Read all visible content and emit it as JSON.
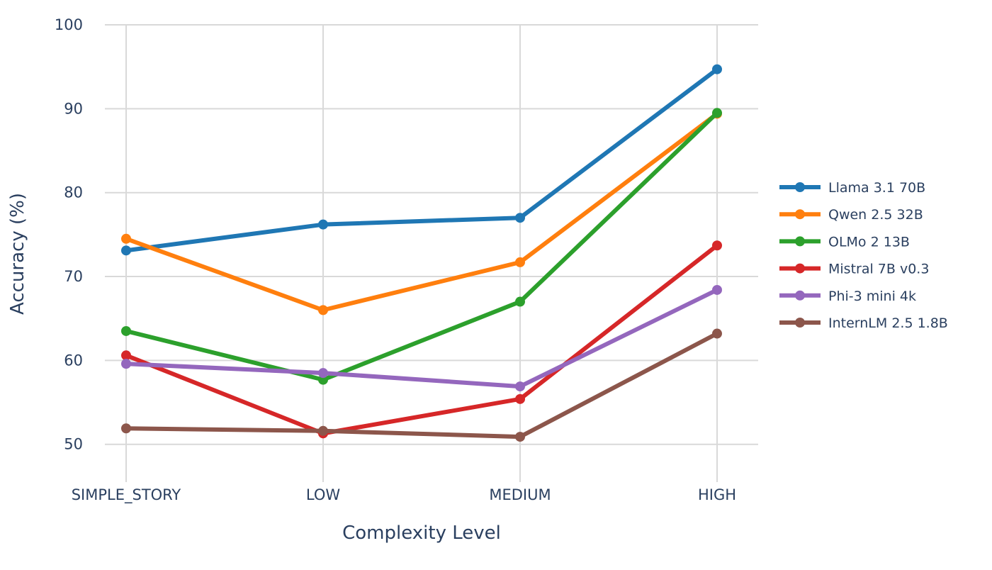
{
  "chart_data": {
    "type": "line",
    "title": "",
    "xlabel": "Complexity Level",
    "ylabel": "Accuracy (%)",
    "categories": [
      "SIMPLE_STORY",
      "LOW",
      "MEDIUM",
      "HIGH"
    ],
    "ylim": [
      45.5,
      100
    ],
    "yticks": [
      50,
      60,
      70,
      80,
      90,
      100
    ],
    "grid": true,
    "legend_position": "right",
    "series": [
      {
        "name": "Llama 3.1 70B",
        "color": "#1f77b4",
        "values": [
          73.1,
          76.2,
          77.0,
          94.7
        ]
      },
      {
        "name": "Qwen 2.5 32B",
        "color": "#ff7f0e",
        "values": [
          74.5,
          66.0,
          71.7,
          89.4
        ]
      },
      {
        "name": "OLMo 2 13B",
        "color": "#2ca02c",
        "values": [
          63.5,
          57.7,
          67.0,
          89.5
        ]
      },
      {
        "name": "Mistral 7B v0.3",
        "color": "#d62728",
        "values": [
          60.6,
          51.3,
          55.4,
          73.7
        ]
      },
      {
        "name": "Phi-3 mini 4k",
        "color": "#9467bd",
        "values": [
          59.6,
          58.5,
          56.9,
          68.4
        ]
      },
      {
        "name": "InternLM 2.5 1.8B",
        "color": "#8c564b",
        "values": [
          51.9,
          51.6,
          50.9,
          63.2
        ]
      }
    ]
  }
}
